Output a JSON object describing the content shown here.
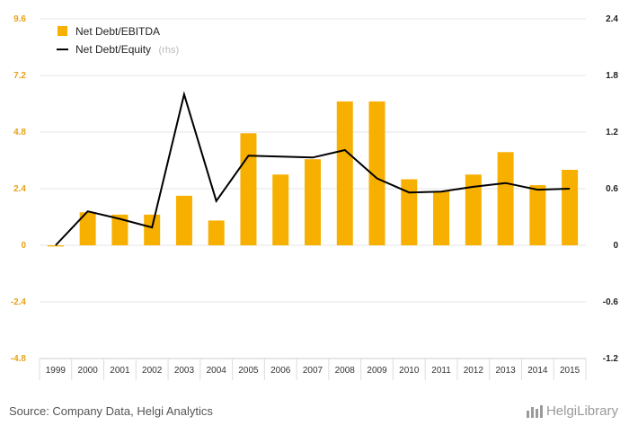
{
  "chart_data": {
    "type": "bar",
    "categories": [
      "1999",
      "2000",
      "2001",
      "2002",
      "2003",
      "2004",
      "2005",
      "2006",
      "2007",
      "2008",
      "2009",
      "2010",
      "2011",
      "2012",
      "2013",
      "2014",
      "2015"
    ],
    "series": [
      {
        "name": "Net Debt/EBITDA",
        "type": "bar",
        "axis": "left",
        "color": "#f7b000",
        "values": [
          -0.05,
          1.4,
          1.3,
          1.3,
          2.1,
          1.05,
          4.75,
          3.0,
          3.65,
          6.1,
          6.1,
          2.8,
          2.3,
          3.0,
          3.95,
          2.55,
          3.2
        ]
      },
      {
        "name": "Net Debt/Equity",
        "type": "line",
        "axis": "right",
        "color": "#000000",
        "values": [
          0.0,
          0.36,
          0.28,
          0.19,
          1.6,
          0.47,
          0.95,
          0.94,
          0.93,
          1.01,
          0.71,
          0.56,
          0.57,
          0.62,
          0.66,
          0.59,
          0.6
        ]
      }
    ],
    "legend_rhs_note": "(rhs)",
    "y_left": {
      "ticks": [
        "9.6",
        "7.2",
        "4.8",
        "2.4",
        "0",
        "-2.4",
        "-4.8"
      ],
      "range": [
        -4.8,
        9.6
      ]
    },
    "y_right": {
      "ticks": [
        "2.4",
        "1.8",
        "1.2",
        "0.6",
        "0",
        "-0.6",
        "-1.2"
      ],
      "range": [
        -1.2,
        2.4
      ]
    },
    "grid": true,
    "legend_position": "top-left"
  },
  "footer": {
    "source": "Source: Company Data, Helgi Analytics",
    "brand": "HelgiLibrary"
  }
}
